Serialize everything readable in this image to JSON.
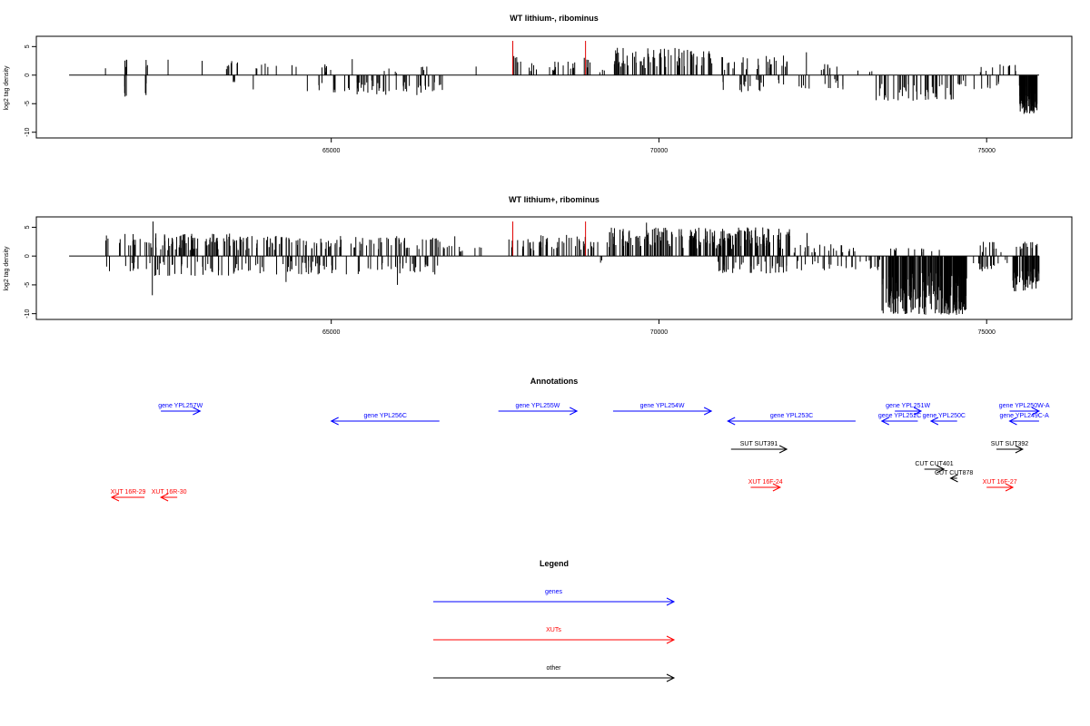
{
  "chart_data": [
    {
      "type": "bar",
      "title": "WT lithium-, ribominus",
      "ylabel": "log2 tag density",
      "xlim": [
        60500,
        76300
      ],
      "ylim": [
        -11,
        6.8
      ],
      "yticks": [
        5,
        0,
        -5,
        -10
      ],
      "ytick_labels": [
        "5",
        "0",
        "-5",
        "-10"
      ],
      "xticks": [
        65000,
        70000,
        75000
      ],
      "xtick_labels": [
        "65000",
        "70000",
        "75000"
      ],
      "baseline": [
        61000,
        75800
      ],
      "grid": false,
      "highlight_color": "#e00000",
      "highlights": [
        {
          "x": 67770,
          "top": 6,
          "bottom": 0
        },
        {
          "x": 68880,
          "top": 6,
          "bottom": 0
        }
      ],
      "series": [
        {
          "segments": [
            {
              "start": 61550,
              "end": 61560,
              "density": 1.0,
              "sign": 1,
              "max": 1.2
            },
            {
              "start": 61840,
              "end": 61880,
              "density": 4,
              "sign": 1,
              "max": 3.3
            },
            {
              "start": 61840,
              "end": 61880,
              "density": 4,
              "sign": -1,
              "max": 4.3
            },
            {
              "start": 62150,
              "end": 62180,
              "density": 3,
              "sign": -1,
              "max": 3.8
            },
            {
              "start": 62160,
              "end": 62200,
              "density": 3,
              "sign": 1,
              "max": 2.8
            },
            {
              "start": 62500,
              "end": 62520,
              "density": 1.0,
              "sign": 1,
              "max": 2.7
            },
            {
              "start": 63020,
              "end": 63040,
              "density": 1.0,
              "sign": 1,
              "max": 2.5
            },
            {
              "start": 63360,
              "end": 63600,
              "density": 8,
              "sign": 1,
              "max": 2.5
            },
            {
              "start": 63500,
              "end": 63560,
              "density": 5,
              "sign": -1,
              "max": 1.5
            },
            {
              "start": 63850,
              "end": 64500,
              "density": 8,
              "sign": 1,
              "max": 2.3
            },
            {
              "start": 63800,
              "end": 63820,
              "density": 1.0,
              "sign": -1,
              "max": 2.5
            },
            {
              "start": 64620,
              "end": 64650,
              "density": 1.0,
              "sign": -1,
              "max": 2.8
            },
            {
              "start": 64800,
              "end": 65000,
              "density": 7,
              "sign": 1,
              "max": 2.0
            },
            {
              "start": 64800,
              "end": 66700,
              "density": 60,
              "sign": -1,
              "max": 3.5
            },
            {
              "start": 65300,
              "end": 65340,
              "density": 1.0,
              "sign": 1,
              "max": 2.8
            },
            {
              "start": 65800,
              "end": 66000,
              "density": 4,
              "sign": 1,
              "max": 1.2
            },
            {
              "start": 66350,
              "end": 66500,
              "density": 4,
              "sign": 1,
              "max": 1.5
            },
            {
              "start": 67200,
              "end": 67220,
              "density": 1.0,
              "sign": 1,
              "max": 1.5
            },
            {
              "start": 67720,
              "end": 67860,
              "density": 4,
              "sign": 1,
              "max": 4.2
            },
            {
              "start": 67870,
              "end": 68100,
              "density": 5,
              "sign": 1,
              "max": 2.5
            },
            {
              "start": 68120,
              "end": 68140,
              "density": 1.0,
              "sign": 1,
              "max": 1.0
            },
            {
              "start": 68300,
              "end": 68800,
              "density": 14,
              "sign": 1,
              "max": 2.5
            },
            {
              "start": 68820,
              "end": 68980,
              "density": 5,
              "sign": 1,
              "max": 3.5
            },
            {
              "start": 69050,
              "end": 69200,
              "density": 3,
              "sign": 1,
              "max": 1.3
            },
            {
              "start": 69300,
              "end": 70800,
              "density": 70,
              "sign": 1,
              "max": 4.8
            },
            {
              "start": 70800,
              "end": 72000,
              "density": 30,
              "sign": 1,
              "max": 3.5
            },
            {
              "start": 70900,
              "end": 72000,
              "density": 20,
              "sign": -1,
              "max": 3.0
            },
            {
              "start": 72050,
              "end": 72900,
              "density": 14,
              "sign": -1,
              "max": 2.5
            },
            {
              "start": 72240,
              "end": 72260,
              "density": 1.0,
              "sign": 1,
              "max": 4.0
            },
            {
              "start": 72400,
              "end": 72900,
              "density": 8,
              "sign": 1,
              "max": 2.0
            },
            {
              "start": 73000,
              "end": 73300,
              "density": 4,
              "sign": 1,
              "max": 1.0
            },
            {
              "start": 73300,
              "end": 74500,
              "density": 45,
              "sign": -1,
              "max": 4.5
            },
            {
              "start": 74500,
              "end": 74800,
              "density": 6,
              "sign": -1,
              "max": 2.0
            },
            {
              "start": 74800,
              "end": 75100,
              "density": 5,
              "sign": -1,
              "max": 2.5
            },
            {
              "start": 74900,
              "end": 75300,
              "density": 6,
              "sign": 1,
              "max": 2.0
            },
            {
              "start": 75100,
              "end": 75200,
              "density": 3,
              "sign": -1,
              "max": 3.0
            },
            {
              "start": 75300,
              "end": 75500,
              "density": 5,
              "sign": 1,
              "max": 2.5
            },
            {
              "start": 75500,
              "end": 75780,
              "density": 95,
              "sign": -1,
              "max": 6.8
            }
          ]
        }
      ]
    },
    {
      "type": "bar",
      "title": "WT lithium+, ribominus",
      "ylabel": "log2 tag density",
      "xlim": [
        60500,
        76300
      ],
      "ylim": [
        -11,
        6.8
      ],
      "yticks": [
        5,
        0,
        -5,
        -10
      ],
      "ytick_labels": [
        "5",
        "0",
        "-5",
        "-10"
      ],
      "xticks": [
        65000,
        70000,
        75000
      ],
      "xtick_labels": [
        "65000",
        "70000",
        "75000"
      ],
      "baseline": [
        61000,
        75800
      ],
      "grid": false,
      "highlight_color": "#e00000",
      "highlights": [
        {
          "x": 67770,
          "top": 6,
          "bottom": 0
        },
        {
          "x": 68880,
          "top": 6,
          "bottom": 0
        }
      ],
      "series": [
        {
          "segments": [
            {
              "start": 61550,
              "end": 61620,
              "density": 3,
              "sign": 1,
              "max": 3.7
            },
            {
              "start": 61550,
              "end": 61620,
              "density": 2,
              "sign": -1,
              "max": 2.8
            },
            {
              "start": 61750,
              "end": 61800,
              "density": 2,
              "sign": 1,
              "max": 3.0
            },
            {
              "start": 61850,
              "end": 63500,
              "density": 80,
              "sign": 1,
              "max": 4.0
            },
            {
              "start": 61850,
              "end": 63500,
              "density": 40,
              "sign": -1,
              "max": 3.5
            },
            {
              "start": 62270,
              "end": 62290,
              "density": 1.0,
              "sign": 1,
              "max": 6.0
            },
            {
              "start": 62260,
              "end": 62280,
              "density": 1.0,
              "sign": -1,
              "max": 6.8
            },
            {
              "start": 63500,
              "end": 66900,
              "density": 120,
              "sign": 1,
              "max": 3.5
            },
            {
              "start": 63500,
              "end": 66900,
              "density": 80,
              "sign": -1,
              "max": 3.2
            },
            {
              "start": 64300,
              "end": 64320,
              "density": 1.0,
              "sign": -1,
              "max": 4.5
            },
            {
              "start": 66000,
              "end": 66020,
              "density": 1.0,
              "sign": -1,
              "max": 5.0
            },
            {
              "start": 66950,
              "end": 67300,
              "density": 8,
              "sign": 1,
              "max": 1.8
            },
            {
              "start": 67700,
              "end": 68200,
              "density": 20,
              "sign": 1,
              "max": 3.0
            },
            {
              "start": 68200,
              "end": 68900,
              "density": 30,
              "sign": 1,
              "max": 3.8
            },
            {
              "start": 68900,
              "end": 69100,
              "density": 6,
              "sign": 1,
              "max": 2.5
            },
            {
              "start": 69200,
              "end": 72000,
              "density": 220,
              "sign": 1,
              "max": 5.0
            },
            {
              "start": 69800,
              "end": 69820,
              "density": 1.0,
              "sign": 1,
              "max": 5.8
            },
            {
              "start": 70900,
              "end": 72000,
              "density": 40,
              "sign": -1,
              "max": 3.0
            },
            {
              "start": 69100,
              "end": 69150,
              "density": 2,
              "sign": -1,
              "max": 1.2
            },
            {
              "start": 72000,
              "end": 73000,
              "density": 25,
              "sign": 1,
              "max": 2.2
            },
            {
              "start": 72000,
              "end": 73400,
              "density": 30,
              "sign": -1,
              "max": 2.5
            },
            {
              "start": 72250,
              "end": 72270,
              "density": 1.0,
              "sign": 1,
              "max": 4.0
            },
            {
              "start": 73400,
              "end": 74700,
              "density": 220,
              "sign": -1,
              "max": 10.2
            },
            {
              "start": 73500,
              "end": 74300,
              "density": 12,
              "sign": 1,
              "max": 1.5
            },
            {
              "start": 74700,
              "end": 75100,
              "density": 12,
              "sign": -1,
              "max": 3.0
            },
            {
              "start": 74900,
              "end": 75400,
              "density": 10,
              "sign": 1,
              "max": 2.5
            },
            {
              "start": 75100,
              "end": 75400,
              "density": 6,
              "sign": -1,
              "max": 2.0
            },
            {
              "start": 75400,
              "end": 75800,
              "density": 60,
              "sign": -1,
              "max": 6.2
            },
            {
              "start": 75450,
              "end": 75780,
              "density": 16,
              "sign": 1,
              "max": 2.5
            }
          ]
        }
      ]
    }
  ],
  "annotations": {
    "title": "Annotations",
    "features": [
      {
        "name": "gene YPL257W",
        "start": 62400,
        "end": 63000,
        "dir": "+",
        "row": 0,
        "color": "#0000ff"
      },
      {
        "name": "gene YPL256C",
        "start": 65000,
        "end": 66650,
        "dir": "-",
        "row": 1,
        "color": "#0000ff"
      },
      {
        "name": "gene YPL255W",
        "start": 67550,
        "end": 68750,
        "dir": "+",
        "row": 0,
        "color": "#0000ff"
      },
      {
        "name": "gene YPL254W",
        "start": 69300,
        "end": 70800,
        "dir": "+",
        "row": 0,
        "color": "#0000ff"
      },
      {
        "name": "gene YPL253C",
        "start": 71050,
        "end": 73000,
        "dir": "-",
        "row": 1,
        "color": "#0000ff"
      },
      {
        "name": "gene YPL251W",
        "start": 73600,
        "end": 74000,
        "dir": "+",
        "row": 0,
        "color": "#0000ff"
      },
      {
        "name": "gene YPL252C",
        "start": 73400,
        "end": 73950,
        "dir": "-",
        "row": 1,
        "color": "#0000ff"
      },
      {
        "name": "gene YPL250C",
        "start": 74150,
        "end": 74550,
        "dir": "-",
        "row": 1,
        "color": "#0000ff"
      },
      {
        "name": "gene YPL250W-A",
        "start": 75350,
        "end": 75800,
        "dir": "+",
        "row": 0,
        "color": "#0000ff"
      },
      {
        "name": "gene YPL249C-A",
        "start": 75350,
        "end": 75800,
        "dir": "-",
        "row": 1,
        "color": "#0000ff"
      },
      {
        "name": "SUT SUT391",
        "start": 71100,
        "end": 71950,
        "dir": "+",
        "row": 2,
        "color": "#000000"
      },
      {
        "name": "SUT SUT392",
        "start": 75150,
        "end": 75550,
        "dir": "+",
        "row": 2,
        "color": "#000000"
      },
      {
        "name": "CUT CUT401",
        "start": 74050,
        "end": 74350,
        "dir": "+",
        "row": 3,
        "color": "#000000"
      },
      {
        "name": "CUT CUT878",
        "start": 74450,
        "end": 74550,
        "dir": "-",
        "row": 4,
        "color": "#000000"
      },
      {
        "name": "XUT 16F-24",
        "start": 71400,
        "end": 71850,
        "dir": "+",
        "row": 5,
        "color": "#ff0000"
      },
      {
        "name": "XUT 16F-27",
        "start": 75000,
        "end": 75400,
        "dir": "+",
        "row": 5,
        "color": "#ff0000"
      },
      {
        "name": "XUT 16R-29",
        "start": 61650,
        "end": 62150,
        "dir": "-",
        "row": 6,
        "color": "#ff0000"
      },
      {
        "name": "XUT 16R-30",
        "start": 62400,
        "end": 62650,
        "dir": "-",
        "row": 6,
        "color": "#ff0000"
      }
    ]
  },
  "legend": {
    "title": "Legend",
    "items": [
      {
        "label": "genes",
        "color": "#0000ff"
      },
      {
        "label": "XUTs",
        "color": "#ff0000"
      },
      {
        "label": "other",
        "color": "#000000"
      }
    ]
  }
}
